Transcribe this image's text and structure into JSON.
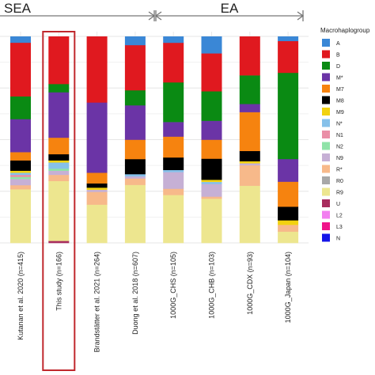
{
  "chart_data": {
    "type": "bar",
    "stacked": true,
    "normalized": true,
    "grid": true,
    "legend_position": "right",
    "legend_title": "Macrohaplogroup",
    "regions": [
      {
        "label": "SEA",
        "categories": [
          0,
          1,
          2,
          3
        ]
      },
      {
        "label": "EA",
        "categories": [
          4,
          5,
          6,
          7
        ]
      }
    ],
    "highlighted_category": "This study (n=166)",
    "categories": [
      "Kutanan et al. 2020 (n=415)",
      "This study (n=166)",
      "Brandstätter et al. 2021 (n=264)",
      "Duong et al. 2018 (n=607)",
      "1000G_CHS (n=105)",
      "1000G_CHB (n=103)",
      "1000G_CDX (n=93)",
      "1000G_Japan (n=104)"
    ],
    "series": [
      {
        "name": "A",
        "color": "#3a87d6",
        "values": [
          0.03,
          0.0,
          0.0,
          0.04,
          0.03,
          0.08,
          0.0,
          0.02
        ]
      },
      {
        "name": "B",
        "color": "#e0191f",
        "values": [
          0.26,
          0.23,
          0.31,
          0.21,
          0.19,
          0.18,
          0.19,
          0.14
        ]
      },
      {
        "name": "D",
        "color": "#0a8a13",
        "values": [
          0.11,
          0.04,
          0.0,
          0.07,
          0.19,
          0.14,
          0.14,
          0.38
        ]
      },
      {
        "name": "M*",
        "color": "#6b34a6",
        "values": [
          0.16,
          0.22,
          0.33,
          0.16,
          0.07,
          0.09,
          0.04,
          0.1
        ]
      },
      {
        "name": "M7",
        "color": "#f6830f",
        "values": [
          0.04,
          0.08,
          0.05,
          0.09,
          0.1,
          0.09,
          0.19,
          0.11
        ]
      },
      {
        "name": "M8",
        "color": "#000000",
        "values": [
          0.05,
          0.03,
          0.02,
          0.07,
          0.06,
          0.1,
          0.05,
          0.06
        ]
      },
      {
        "name": "M9",
        "color": "#f2d210",
        "values": [
          0.01,
          0.01,
          0.01,
          0.0,
          0.0,
          0.01,
          0.01,
          0.02
        ]
      },
      {
        "name": "N*",
        "color": "#86c1ea",
        "values": [
          0.01,
          0.03,
          0.0,
          0.01,
          0.01,
          0.01,
          0.0,
          0.0
        ]
      },
      {
        "name": "N1",
        "color": "#ea8fa7",
        "values": [
          0.01,
          0.0,
          0.0,
          0.0,
          0.0,
          0.0,
          0.0,
          0.0
        ]
      },
      {
        "name": "N2",
        "color": "#8fe3a8",
        "values": [
          0.01,
          0.01,
          0.0,
          0.0,
          0.0,
          0.0,
          0.0,
          0.0
        ]
      },
      {
        "name": "N9",
        "color": "#c6b0d5",
        "values": [
          0.03,
          0.02,
          0.01,
          0.01,
          0.08,
          0.06,
          0.01,
          0.0
        ]
      },
      {
        "name": "R*",
        "color": "#f7b98a",
        "values": [
          0.02,
          0.03,
          0.06,
          0.03,
          0.03,
          0.01,
          0.1,
          0.03
        ]
      },
      {
        "name": "R0",
        "color": "#a8a8a8",
        "values": [
          0.0,
          0.0,
          0.0,
          0.0,
          0.0,
          0.0,
          0.0,
          0.0
        ]
      },
      {
        "name": "R9",
        "color": "#ede68f",
        "values": [
          0.26,
          0.29,
          0.18,
          0.27,
          0.23,
          0.21,
          0.28,
          0.05
        ]
      },
      {
        "name": "U",
        "color": "#a82d5e",
        "values": [
          0.0,
          0.01,
          0.0,
          0.0,
          0.0,
          0.0,
          0.0,
          0.0
        ]
      },
      {
        "name": "L2",
        "color": "#f27ff0",
        "values": [
          0.0,
          0.0,
          0.0,
          0.0,
          0.0,
          0.0,
          0.0,
          0.0
        ]
      },
      {
        "name": "L3",
        "color": "#f0148a",
        "values": [
          0.0,
          0.0,
          0.0,
          0.0,
          0.0,
          0.0,
          0.0,
          0.0
        ]
      },
      {
        "name": "N",
        "color": "#1515e8",
        "values": [
          0.0,
          0.0,
          0.0,
          0.0,
          0.0,
          0.0,
          0.0,
          0.0
        ]
      }
    ]
  }
}
